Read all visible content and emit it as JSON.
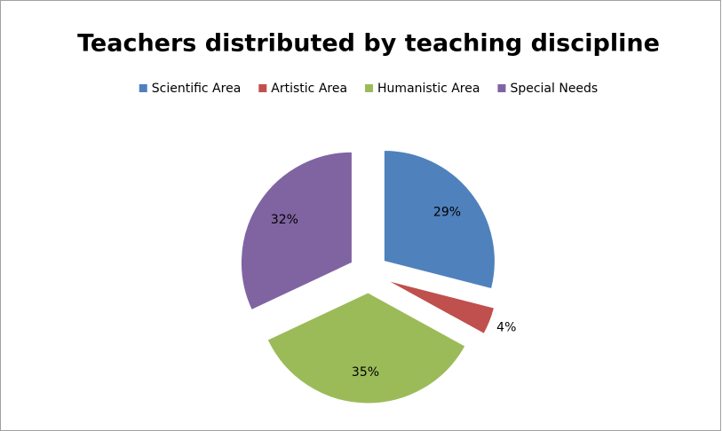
{
  "chart_data": {
    "type": "pie",
    "title": "Teachers distributed by teaching discipline",
    "categories": [
      "Scientific Area",
      "Artistic Area",
      "Humanistic Area",
      "Special Needs"
    ],
    "values": [
      29,
      4,
      35,
      32
    ],
    "value_labels": [
      "29%",
      "4%",
      "35%",
      "32%"
    ],
    "colors": [
      "#4f81bd",
      "#c0504d",
      "#9bbb59",
      "#8064a2"
    ],
    "legend": "top"
  }
}
